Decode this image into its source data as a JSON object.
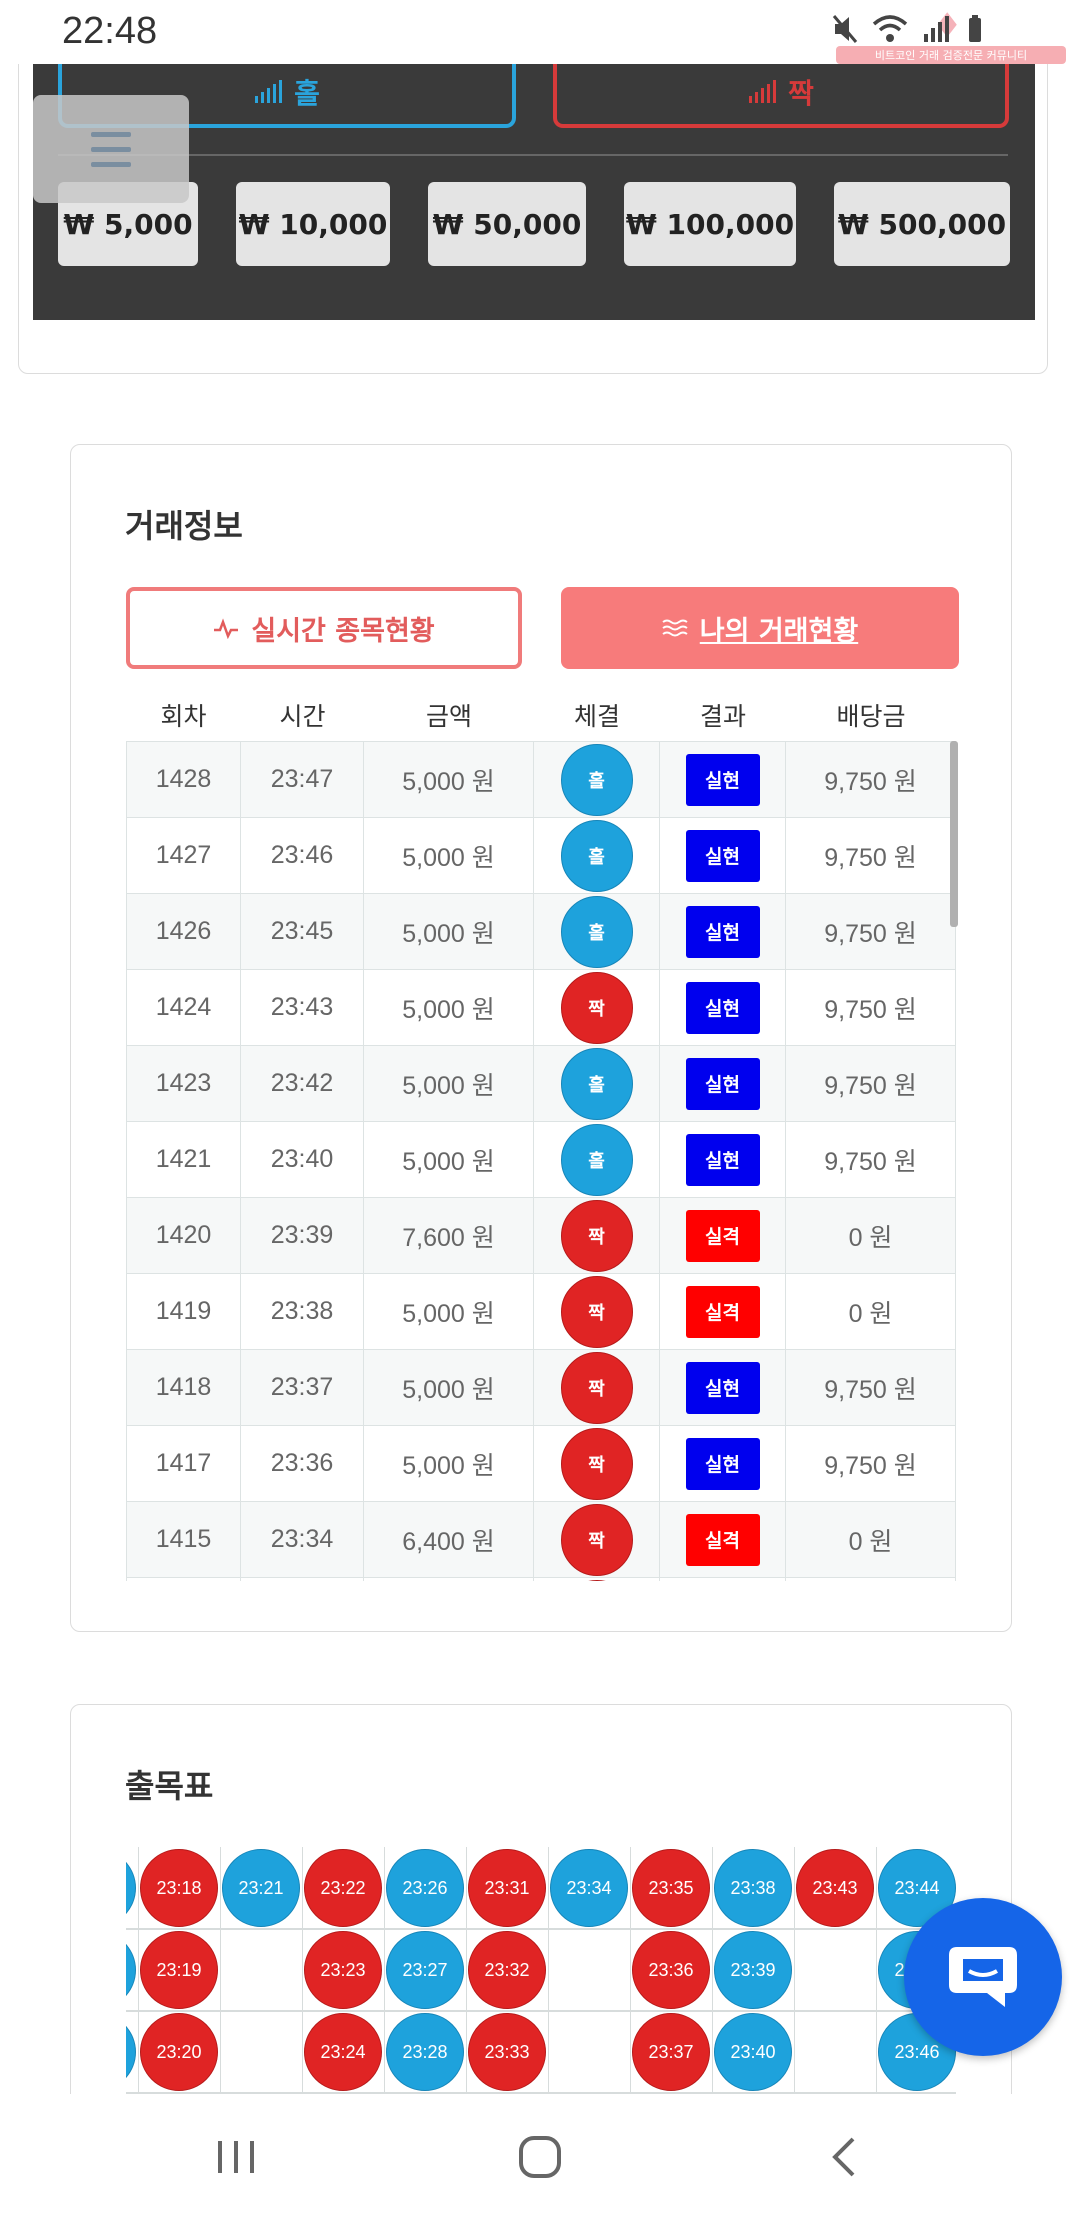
{
  "status": {
    "time": "22:48",
    "watermark_text": "비트코인 거래 검증전문 커뮤니티"
  },
  "bet_panel": {
    "odd_label": "홀",
    "even_label": "짝",
    "amounts": [
      "₩ 5,000",
      "₩ 10,000",
      "₩ 50,000",
      "₩ 100,000",
      "₩ 500,000"
    ]
  },
  "trade_info": {
    "title": "거래정보",
    "tab_live": "실시간 종목현황",
    "tab_mine": "나의 거래현황",
    "columns": [
      "회차",
      "시간",
      "금액",
      "체결",
      "결과",
      "배당금"
    ],
    "rows": [
      {
        "round": "1428",
        "time": "23:47",
        "amount": "5,000 원",
        "pick": "홀",
        "pick_type": "hol",
        "result": "실현",
        "result_type": "win",
        "payout": "9,750 원"
      },
      {
        "round": "1427",
        "time": "23:46",
        "amount": "5,000 원",
        "pick": "홀",
        "pick_type": "hol",
        "result": "실현",
        "result_type": "win",
        "payout": "9,750 원"
      },
      {
        "round": "1426",
        "time": "23:45",
        "amount": "5,000 원",
        "pick": "홀",
        "pick_type": "hol",
        "result": "실현",
        "result_type": "win",
        "payout": "9,750 원"
      },
      {
        "round": "1424",
        "time": "23:43",
        "amount": "5,000 원",
        "pick": "짝",
        "pick_type": "jjak",
        "result": "실현",
        "result_type": "win",
        "payout": "9,750 원"
      },
      {
        "round": "1423",
        "time": "23:42",
        "amount": "5,000 원",
        "pick": "홀",
        "pick_type": "hol",
        "result": "실현",
        "result_type": "win",
        "payout": "9,750 원"
      },
      {
        "round": "1421",
        "time": "23:40",
        "amount": "5,000 원",
        "pick": "홀",
        "pick_type": "hol",
        "result": "실현",
        "result_type": "win",
        "payout": "9,750 원"
      },
      {
        "round": "1420",
        "time": "23:39",
        "amount": "7,600 원",
        "pick": "짝",
        "pick_type": "jjak",
        "result": "실격",
        "result_type": "lose",
        "payout": "0 원"
      },
      {
        "round": "1419",
        "time": "23:38",
        "amount": "5,000 원",
        "pick": "짝",
        "pick_type": "jjak",
        "result": "실격",
        "result_type": "lose",
        "payout": "0 원"
      },
      {
        "round": "1418",
        "time": "23:37",
        "amount": "5,000 원",
        "pick": "짝",
        "pick_type": "jjak",
        "result": "실현",
        "result_type": "win",
        "payout": "9,750 원"
      },
      {
        "round": "1417",
        "time": "23:36",
        "amount": "5,000 원",
        "pick": "짝",
        "pick_type": "jjak",
        "result": "실현",
        "result_type": "win",
        "payout": "9,750 원"
      },
      {
        "round": "1415",
        "time": "23:34",
        "amount": "6,400 원",
        "pick": "짝",
        "pick_type": "jjak",
        "result": "실격",
        "result_type": "lose",
        "payout": "0 원"
      },
      {
        "round": "",
        "time": "",
        "amount": "",
        "pick": "",
        "pick_type": "jjak",
        "result": "",
        "result_type": "none",
        "payout": ""
      }
    ]
  },
  "result_chart": {
    "title": "출목표",
    "columns": [
      {
        "color": "b",
        "times": [
          "",
          "",
          ""
        ]
      },
      {
        "color": "r",
        "times": [
          "23:18",
          "23:19",
          "23:20"
        ]
      },
      {
        "color": "b",
        "times": [
          "23:21"
        ]
      },
      {
        "color": "r",
        "times": [
          "23:22",
          "23:23",
          "23:24"
        ]
      },
      {
        "color": "b",
        "times": [
          "23:26",
          "23:27",
          "23:28"
        ]
      },
      {
        "color": "r",
        "times": [
          "23:31",
          "23:32",
          "23:33"
        ]
      },
      {
        "color": "b",
        "times": [
          "23:34"
        ]
      },
      {
        "color": "r",
        "times": [
          "23:35",
          "23:36",
          "23:37"
        ]
      },
      {
        "color": "b",
        "times": [
          "23:38",
          "23:39",
          "23:40"
        ]
      },
      {
        "color": "r",
        "times": [
          "23:43"
        ]
      },
      {
        "color": "b",
        "times": [
          "23:44",
          "23:45",
          "23:46"
        ]
      }
    ]
  },
  "colors": {
    "odd_blue": "#1ea2dc",
    "even_red": "#e02424",
    "win_blue": "#0000ee",
    "lose_red": "#ff0000",
    "fab_blue": "#1565e8",
    "tab_pink": "#f77b7b"
  }
}
